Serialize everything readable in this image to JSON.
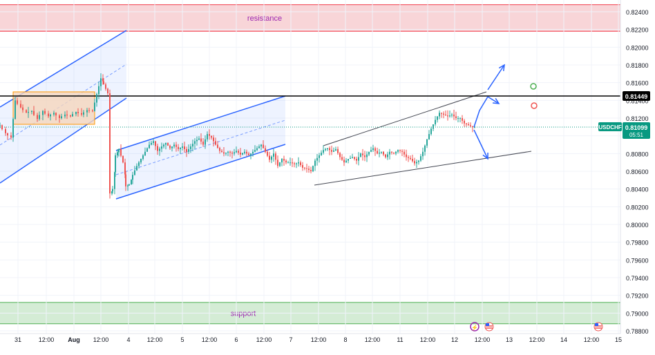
{
  "chart_data": {
    "type": "candlestick",
    "symbol": "USDCHF",
    "price_axis": {
      "min": 0.788,
      "max": 0.824,
      "ticks": [
        "0.82400",
        "0.82200",
        "0.82000",
        "0.81800",
        "0.81600",
        "0.81400",
        "0.81200",
        "0.81000",
        "0.80800",
        "0.80600",
        "0.80400",
        "0.80200",
        "0.80000",
        "0.79800",
        "0.79600",
        "0.79400",
        "0.79200",
        "0.79000",
        "0.78800"
      ]
    },
    "time_axis": {
      "ticks": [
        "31",
        "12:00",
        "Aug",
        "12:00",
        "4",
        "12:00",
        "5",
        "12:00",
        "6",
        "12:00",
        "7",
        "12:00",
        "8",
        "12:00",
        "11",
        "12:00",
        "12",
        "12:00",
        "13",
        "12:00",
        "14",
        "12:00",
        "15"
      ]
    },
    "price_labels": {
      "level": "0.81449",
      "current_symbol": "USDCHF",
      "current_price": "0.81099",
      "countdown": "05:51"
    },
    "zones": {
      "resistance_label": "resistance",
      "resistance_range": [
        0.8218,
        0.8248
      ],
      "support_label": "support",
      "support_range": [
        0.7888,
        0.7912
      ]
    },
    "horizontal_level": 0.81449,
    "current_price_value": 0.81099,
    "colors": {
      "up": "#26a69a",
      "down": "#ef5350",
      "channel": "#2962ff",
      "resistance_fill": "#f8d5d8",
      "resistance_line": "#f23645",
      "support_fill": "#d4ecd5",
      "support_line": "#4caf50",
      "zone_label": "#9c27b0",
      "current": "#089981",
      "box_fill": "#f5d6bd",
      "box_border": "#ff9800"
    }
  }
}
